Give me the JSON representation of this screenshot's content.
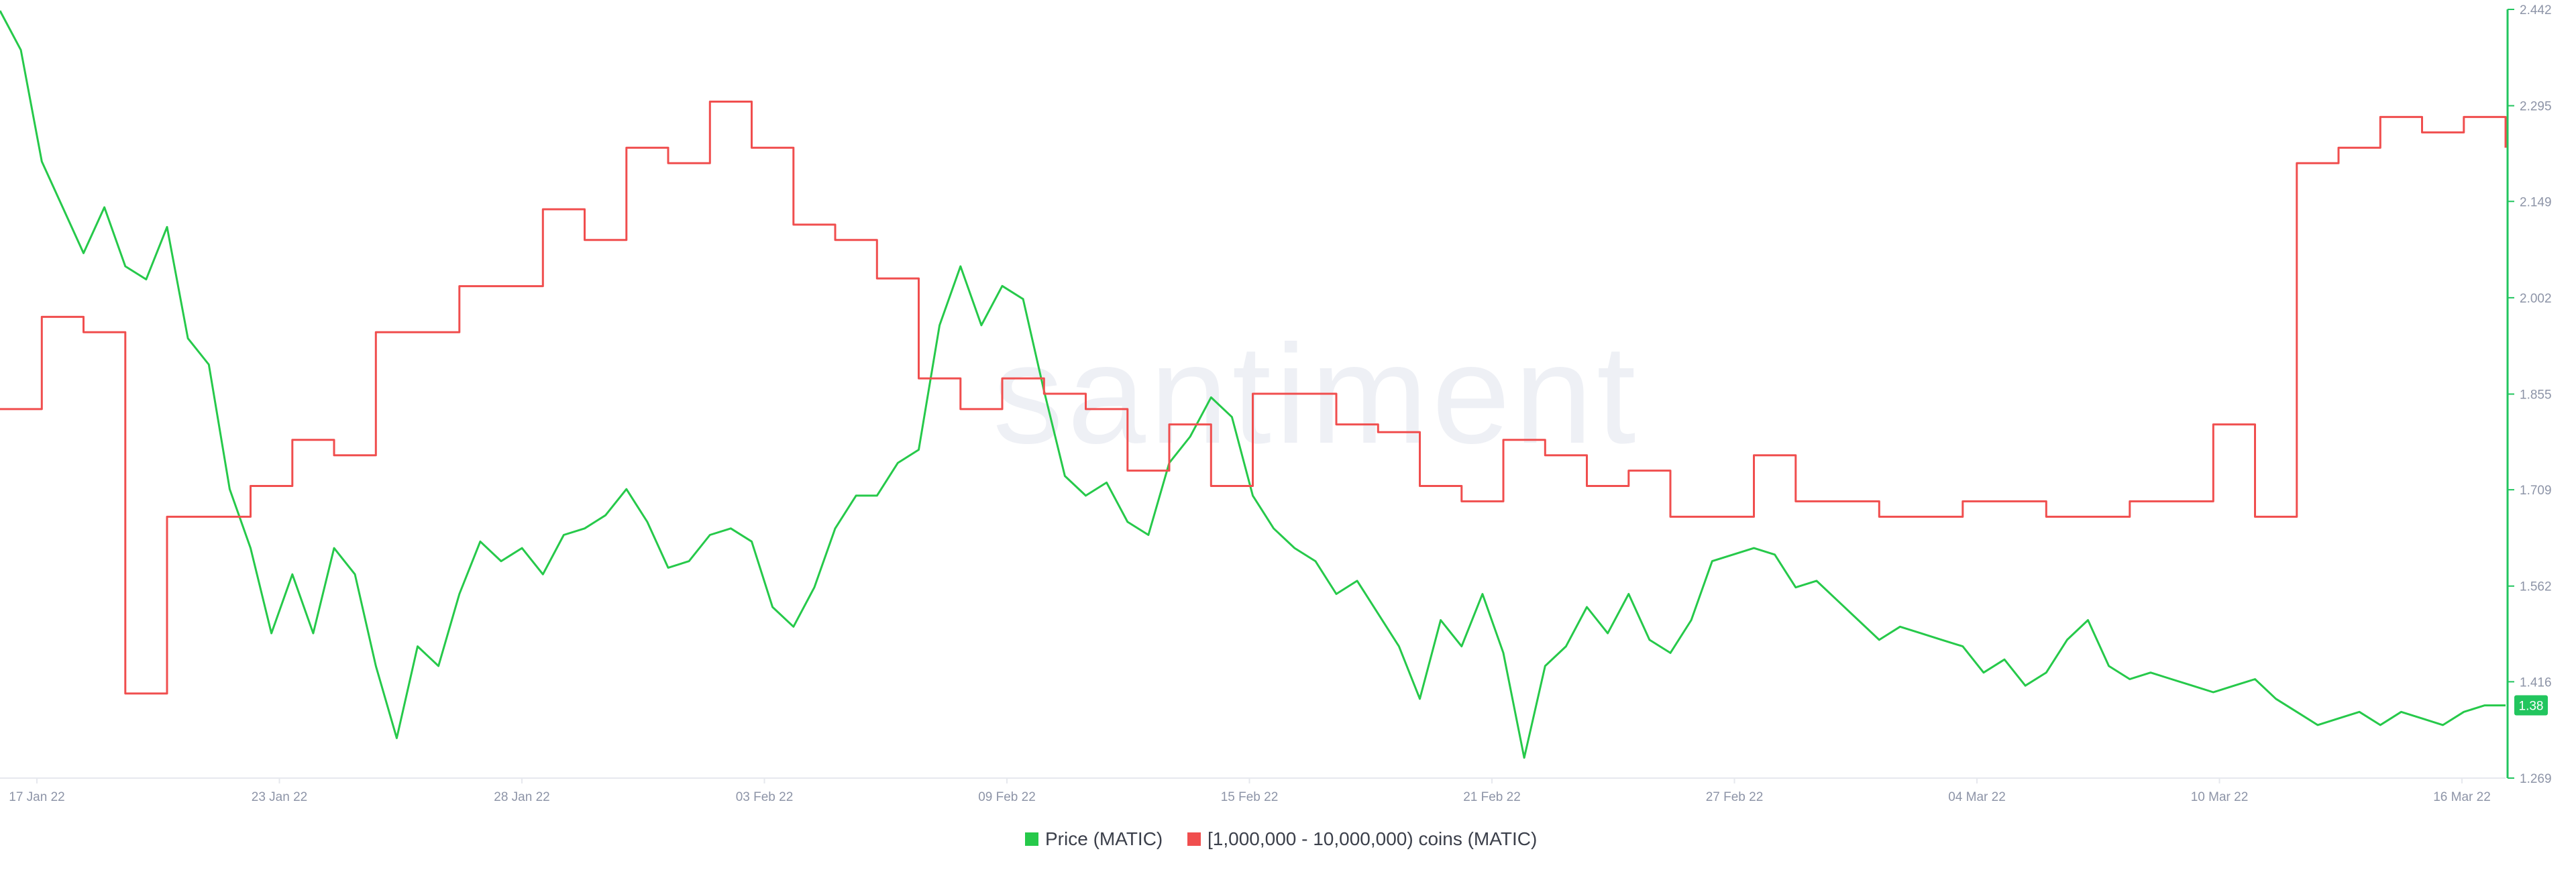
{
  "watermark": "santiment",
  "colors": {
    "price": "#26c94a",
    "holders": "#f04e4e",
    "axis": "#22c55e",
    "grid": "#e6e8ee",
    "tick_text": "#8d94a7",
    "badge_bg": "#22c55e",
    "badge_text": "#ffffff"
  },
  "chart_data": {
    "type": "line",
    "x_labels": [
      "17 Jan 22",
      "23 Jan 22",
      "28 Jan 22",
      "03 Feb 22",
      "09 Feb 22",
      "15 Feb 22",
      "21 Feb 22",
      "27 Feb 22",
      "04 Mar 22",
      "10 Mar 22",
      "16 Mar 22"
    ],
    "xlim": [
      0,
      60
    ],
    "y_right": {
      "ticks": [
        "2.442",
        "2.295",
        "2.149",
        "2.002",
        "1.855",
        "1.709",
        "1.562",
        "1.416",
        "1.269"
      ],
      "range": [
        1.269,
        2.442
      ]
    },
    "current_value_badge": "1.38",
    "grid": false,
    "legend_position": "bottom-center",
    "series": [
      {
        "name": "Price (MATIC)",
        "color": "#26c94a",
        "axis": "right",
        "x": [
          0,
          0.5,
          1,
          1.5,
          2,
          2.5,
          3,
          3.5,
          4,
          4.5,
          5,
          5.5,
          6,
          6.5,
          7,
          7.5,
          8,
          8.5,
          9,
          9.5,
          10,
          10.5,
          11,
          11.5,
          12,
          12.5,
          13,
          13.5,
          14,
          14.5,
          15,
          15.5,
          16,
          16.5,
          17,
          17.5,
          18,
          18.5,
          19,
          19.5,
          20,
          20.5,
          21,
          21.5,
          22,
          22.5,
          23,
          23.5,
          24,
          24.5,
          25,
          25.5,
          26,
          26.5,
          27,
          27.5,
          28,
          28.5,
          29,
          29.5,
          30,
          30.5,
          31,
          31.5,
          32,
          32.5,
          33,
          33.5,
          34,
          34.5,
          35,
          35.5,
          36,
          36.5,
          37,
          37.5,
          38,
          38.5,
          39,
          39.5,
          40,
          40.5,
          41,
          41.5,
          42,
          42.5,
          43,
          43.5,
          44,
          44.5,
          45,
          45.5,
          46,
          46.5,
          47,
          47.5,
          48,
          48.5,
          49,
          49.5,
          50,
          50.5,
          51,
          51.5,
          52,
          52.5,
          53,
          53.5,
          54,
          54.5,
          55,
          55.5,
          56,
          56.5,
          57,
          57.5,
          58,
          58.5,
          59,
          59.5,
          60
        ],
        "values": [
          2.44,
          2.38,
          2.21,
          2.14,
          2.07,
          2.14,
          2.05,
          2.03,
          2.11,
          1.94,
          1.9,
          1.71,
          1.62,
          1.49,
          1.58,
          1.49,
          1.62,
          1.58,
          1.44,
          1.33,
          1.47,
          1.44,
          1.55,
          1.63,
          1.6,
          1.62,
          1.58,
          1.64,
          1.65,
          1.67,
          1.71,
          1.66,
          1.59,
          1.6,
          1.64,
          1.65,
          1.63,
          1.53,
          1.5,
          1.56,
          1.65,
          1.7,
          1.7,
          1.75,
          1.77,
          1.96,
          2.05,
          1.96,
          2.02,
          2.0,
          1.86,
          1.73,
          1.7,
          1.72,
          1.66,
          1.64,
          1.75,
          1.79,
          1.85,
          1.82,
          1.7,
          1.65,
          1.62,
          1.6,
          1.55,
          1.57,
          1.52,
          1.47,
          1.39,
          1.51,
          1.47,
          1.55,
          1.46,
          1.3,
          1.44,
          1.47,
          1.53,
          1.49,
          1.55,
          1.48,
          1.46,
          1.51,
          1.6,
          1.61,
          1.62,
          1.61,
          1.56,
          1.57,
          1.54,
          1.51,
          1.48,
          1.5,
          1.49,
          1.48,
          1.47,
          1.43,
          1.45,
          1.41,
          1.43,
          1.48,
          1.51,
          1.44,
          1.42,
          1.43,
          1.42,
          1.41,
          1.4,
          1.41,
          1.42,
          1.39,
          1.37,
          1.35,
          1.36,
          1.37,
          1.35,
          1.37,
          1.36,
          1.35,
          1.37,
          1.38,
          1.38
        ]
      },
      {
        "name": "[1,000,000 - 10,000,000) coins (MATIC)",
        "color": "#f04e4e",
        "axis": "hidden",
        "x": [
          0,
          1,
          2,
          3,
          4,
          5,
          6,
          7,
          8,
          9,
          10,
          11,
          12,
          13,
          14,
          15,
          16,
          17,
          18,
          19,
          20,
          21,
          22,
          23,
          24,
          25,
          26,
          27,
          28,
          29,
          30,
          31,
          32,
          33,
          34,
          35,
          36,
          37,
          38,
          39,
          40,
          41,
          42,
          43,
          44,
          45,
          46,
          47,
          48,
          49,
          50,
          51,
          52,
          53,
          54,
          55,
          56,
          57,
          58,
          59,
          60
        ],
        "values": [
          48,
          60,
          58,
          11,
          34,
          34,
          38,
          44,
          42,
          58,
          58,
          64,
          64,
          74,
          70,
          82,
          80,
          88,
          82,
          72,
          70,
          65,
          52,
          48,
          52,
          50,
          48,
          40,
          46,
          38,
          50,
          50,
          46,
          45,
          38,
          36,
          44,
          42,
          38,
          40,
          34,
          34,
          42,
          36,
          36,
          34,
          34,
          36,
          36,
          34,
          34,
          36,
          36,
          46,
          34,
          80,
          82,
          86,
          84,
          86,
          82
        ]
      }
    ]
  },
  "legend": [
    {
      "label": "Price (MATIC)",
      "color": "#26c94a"
    },
    {
      "label": "[1,000,000 - 10,000,000) coins (MATIC)",
      "color": "#f04e4e"
    }
  ]
}
